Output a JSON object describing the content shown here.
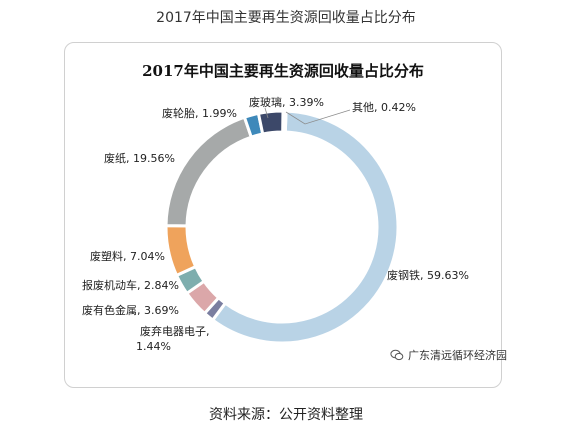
{
  "page": {
    "title": "2017年中国主要再生资源回收量占比分布",
    "watermark": "广东清远循环经济园",
    "source": "资料来源：公开资料整理"
  },
  "chart_data": {
    "type": "pie",
    "title": "2017年中国主要再生资源回收量占比分布",
    "slices": [
      {
        "name": "废钢铁",
        "value": 59.63,
        "label": "废钢铁, 59.63%",
        "color": "#b9d3e6"
      },
      {
        "name": "废弃电器电子",
        "value": 1.44,
        "label": [
          "废弃电器电子,",
          "1.44%"
        ],
        "color": "#7a7ea0"
      },
      {
        "name": "废有色金属",
        "value": 3.69,
        "label": "废有色金属, 3.69%",
        "color": "#dba7a9"
      },
      {
        "name": "报废机动车",
        "value": 2.84,
        "label": "报废机动车, 2.84%",
        "color": "#7eaeae"
      },
      {
        "name": "废塑料",
        "value": 7.04,
        "label": "废塑料, 7.04%",
        "color": "#efa35c"
      },
      {
        "name": "废纸",
        "value": 19.56,
        "label": "废纸, 19.56%",
        "color": "#a6a9a9"
      },
      {
        "name": "废轮胎",
        "value": 1.99,
        "label": "废轮胎, 1.99%",
        "color": "#3e89ba"
      },
      {
        "name": "废玻璃",
        "value": 3.39,
        "label": "废玻璃, 3.39%",
        "color": "#3c4869"
      },
      {
        "name": "其他",
        "value": 0.42,
        "label": "其他, 0.42%",
        "color": "#8f7f9e"
      }
    ]
  }
}
